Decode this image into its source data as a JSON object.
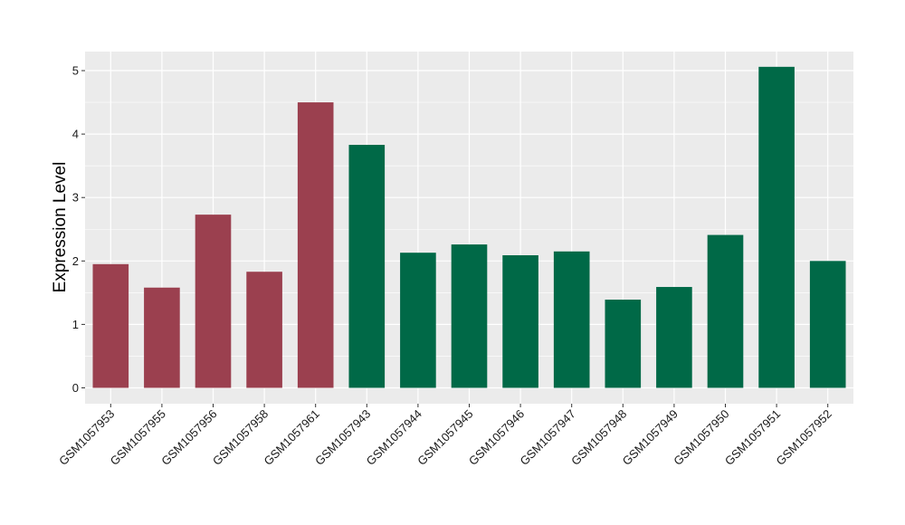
{
  "chart_data": {
    "type": "bar",
    "title": "",
    "xlabel": "",
    "ylabel": "Expression Level",
    "ylim": [
      -0.25,
      5.3
    ],
    "yticks": [
      0,
      1,
      2,
      3,
      4,
      5
    ],
    "grid": true,
    "legend": "none",
    "categories": [
      "GSM1057953",
      "GSM1057955",
      "GSM1057956",
      "GSM1057958",
      "GSM1057961",
      "GSM1057943",
      "GSM1057944",
      "GSM1057945",
      "GSM1057946",
      "GSM1057947",
      "GSM1057948",
      "GSM1057949",
      "GSM1057950",
      "GSM1057951",
      "GSM1057952"
    ],
    "values": [
      1.95,
      1.58,
      2.73,
      1.83,
      4.5,
      3.83,
      2.13,
      2.26,
      2.09,
      2.15,
      1.39,
      1.59,
      2.41,
      5.06,
      2.0
    ],
    "bar_colors": [
      "#9b404f",
      "#9b404f",
      "#9b404f",
      "#9b404f",
      "#9b404f",
      "#006947",
      "#006947",
      "#006947",
      "#006947",
      "#006947",
      "#006947",
      "#006947",
      "#006947",
      "#006947",
      "#006947"
    ],
    "panel_background": "#ebebeb",
    "gridline_color": "#ffffff"
  }
}
